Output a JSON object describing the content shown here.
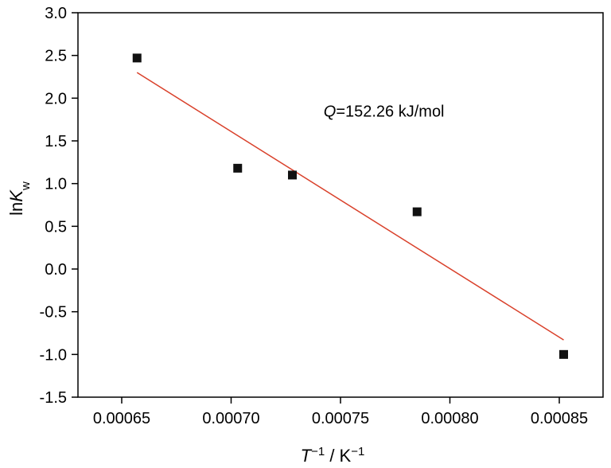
{
  "chart_data": {
    "type": "scatter",
    "xlim": [
      0.00063,
      0.00087
    ],
    "ylim": [
      -1.5,
      3.0
    ],
    "x_ticks": [
      "0.00065",
      "0.00070",
      "0.00075",
      "0.00080",
      "0.00085"
    ],
    "x_tick_values": [
      0.00065,
      0.0007,
      0.00075,
      0.0008,
      0.00085
    ],
    "y_ticks": [
      "3.0",
      "2.5",
      "2.0",
      "1.5",
      "1.0",
      "0.5",
      "0.0",
      "-0.5",
      "-1.0",
      "-1.5"
    ],
    "y_tick_values": [
      3.0,
      2.5,
      2.0,
      1.5,
      1.0,
      0.5,
      0.0,
      -0.5,
      -1.0,
      -1.5
    ],
    "xlabel": {
      "var": "T",
      "sup": "−1",
      "unit": " / K",
      "unit_sup": "−1"
    },
    "ylabel": {
      "prefix": "ln",
      "var": "K",
      "sub": "w"
    },
    "series": [
      {
        "points": [
          {
            "x": 0.000657,
            "y": 2.47
          },
          {
            "x": 0.000703,
            "y": 1.18
          },
          {
            "x": 0.000728,
            "y": 1.1
          },
          {
            "x": 0.000785,
            "y": 0.67
          },
          {
            "x": 0.000852,
            "y": -1.0
          }
        ],
        "marker_color": "#111111"
      }
    ],
    "fit_line": {
      "x": [
        0.000657,
        0.000852
      ],
      "y": [
        2.3,
        -0.83
      ],
      "color": "#d9402a"
    },
    "annotation": {
      "var": "Q",
      "text": "=152.26 kJ/mol",
      "x": 0.000775,
      "y": 1.85
    },
    "grid": false
  }
}
